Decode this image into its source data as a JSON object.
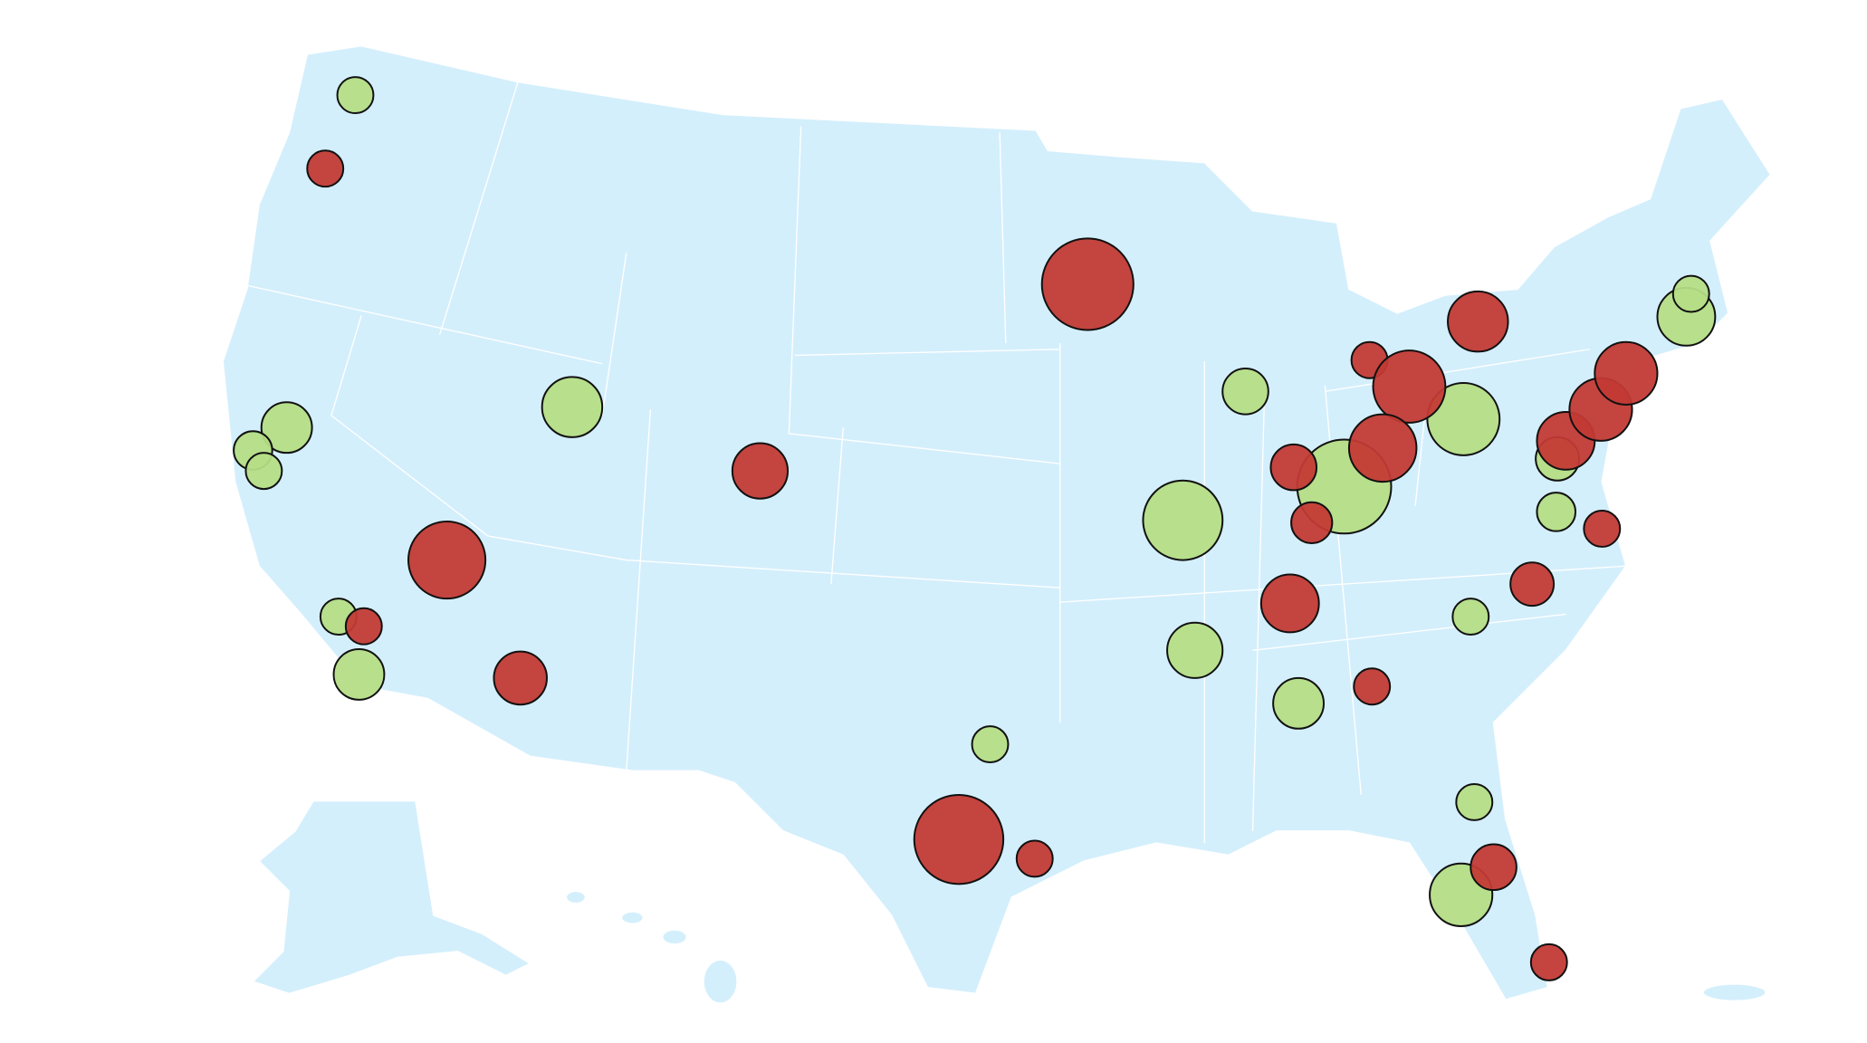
{
  "chart_data": {
    "type": "bubble-map",
    "series": [
      {
        "color": "#b5dd86",
        "sizes": [
          15,
          21,
          16,
          15,
          25,
          15,
          21,
          15,
          19,
          33,
          39,
          30,
          18,
          16,
          23,
          21,
          15,
          15,
          26,
          24,
          15
        ]
      },
      {
        "color": "#c33a35",
        "sizes": [
          15,
          32,
          15,
          22,
          23,
          38,
          37,
          15,
          15,
          30,
          25,
          19,
          28,
          17,
          24,
          15,
          18,
          15,
          24,
          26,
          26,
          19,
          15
        ]
      }
    ]
  }
}
